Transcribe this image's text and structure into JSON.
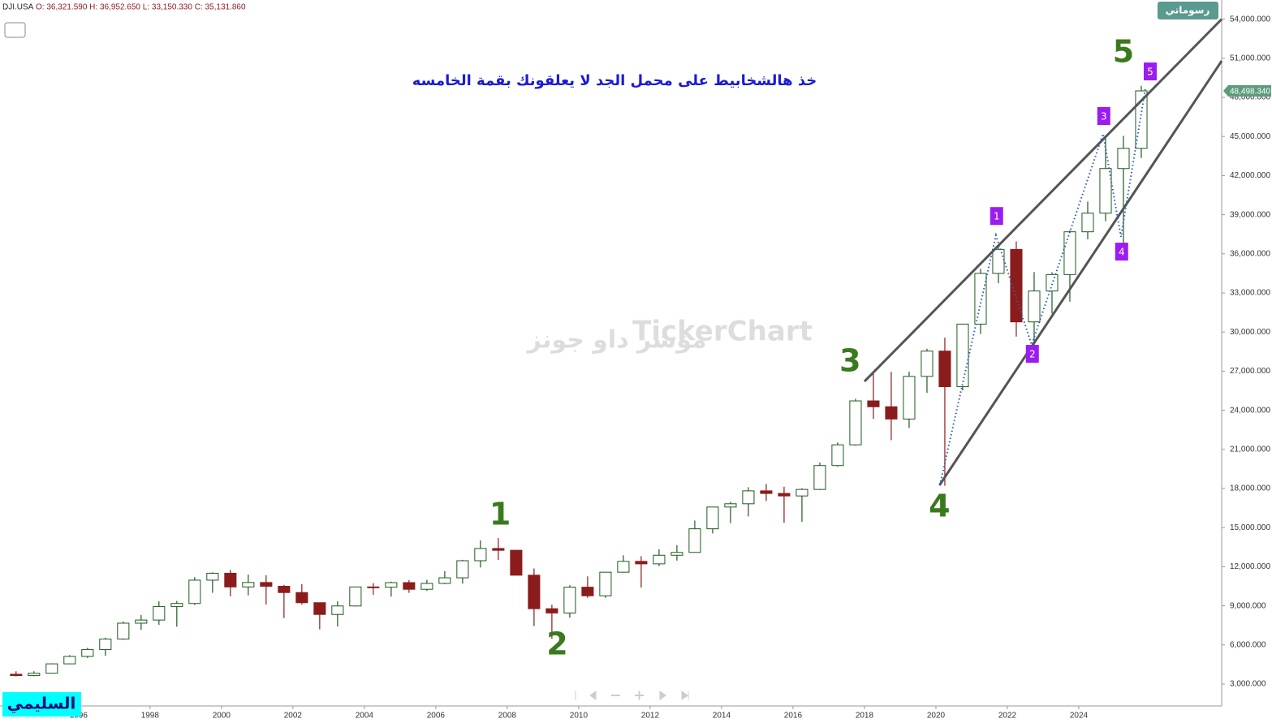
{
  "header": {
    "symbol": "DJI.USA",
    "ohlc": "O: 36,321.590 H: 36,952.650 L: 33,150.330 C: 35,131.860"
  },
  "button": "رسوماتي",
  "watermark": {
    "brand": "TickerChart",
    "name": "مؤشر داو جونز"
  },
  "signature": "السليمي",
  "chart_data": {
    "type": "candlestick",
    "title": "خذ هالشخابيط على محمل الجد لا يعلقونك بقمة الخامسه",
    "x": [
      1994.25,
      1994.75,
      1995.25,
      1995.75,
      1996.25,
      1996.75,
      1997.25,
      1997.75,
      1998.25,
      1998.75,
      1999.25,
      1999.75,
      2000.25,
      2000.75,
      2001.25,
      2001.75,
      2002.25,
      2002.75,
      2003.25,
      2003.75,
      2004.25,
      2004.75,
      2005.25,
      2005.75,
      2006.25,
      2006.75,
      2007.25,
      2007.75,
      2008.25,
      2008.75,
      2009.25,
      2009.75,
      2010.25,
      2010.75,
      2011.25,
      2011.75,
      2012.25,
      2012.75,
      2013.25,
      2013.75,
      2014.25,
      2014.75,
      2015.25,
      2015.75,
      2016.25,
      2016.75,
      2017.25,
      2017.75,
      2018.25,
      2018.75,
      2019.25,
      2019.75,
      2020.25,
      2020.75,
      2021.25,
      2021.75,
      2022.25,
      2022.75,
      2023.25,
      2023.75,
      2024.25,
      2024.75,
      2025.25,
      2025.75
    ],
    "open": [
      3750,
      3650,
      3830,
      4550,
      5120,
      5650,
      6450,
      7670,
      7910,
      8950,
      9180,
      10970,
      11500,
      10450,
      10790,
      10500,
      10020,
      9240,
      8340,
      8990,
      10450,
      10430,
      10780,
      10270,
      10720,
      11150,
      12460,
      13400,
      13260,
      11350,
      8780,
      8450,
      10430,
      9770,
      11580,
      12410,
      12220,
      12880,
      13100,
      14910,
      16580,
      16830,
      17820,
      17620,
      17430,
      17930,
      19760,
      21350,
      24720,
      24270,
      23330,
      26600,
      28540,
      25810,
      30610,
      34500,
      36340,
      30780,
      33150,
      34410,
      37690,
      39120,
      42540,
      44090
    ],
    "high": [
      3980,
      3980,
      4590,
      5220,
      5780,
      6560,
      7800,
      8300,
      9340,
      9380,
      11200,
      11570,
      11750,
      11400,
      11340,
      10610,
      10670,
      9250,
      9350,
      10460,
      10750,
      10860,
      10980,
      10990,
      11670,
      12530,
      14020,
      14200,
      13280,
      11870,
      9090,
      10580,
      11260,
      11590,
      12880,
      12810,
      13340,
      13660,
      15540,
      16590,
      16980,
      18100,
      18350,
      18140,
      18020,
      19990,
      21530,
      24880,
      26950,
      26950,
      26960,
      28720,
      29570,
      30640,
      34850,
      36570,
      36950,
      34600,
      34590,
      37800,
      40000,
      45070,
      45050,
      48890
    ],
    "low": [
      3590,
      3600,
      3830,
      4530,
      5000,
      5170,
      6390,
      7160,
      7540,
      7400,
      9060,
      10000,
      9730,
      9800,
      9100,
      8060,
      9100,
      7200,
      7420,
      8950,
      9850,
      9710,
      10000,
      10150,
      10660,
      10700,
      11940,
      12520,
      11630,
      7450,
      6470,
      8090,
      9610,
      9610,
      11560,
      10400,
      12040,
      12470,
      13100,
      14550,
      15340,
      15860,
      17040,
      15370,
      15450,
      17880,
      19680,
      21280,
      23340,
      21710,
      22640,
      25340,
      18210,
      25520,
      29850,
      33740,
      29650,
      28660,
      31430,
      32330,
      37120,
      38500,
      36610,
      43340
    ],
    "close": [
      3650,
      3830,
      4550,
      5120,
      5650,
      6450,
      7670,
      7910,
      8950,
      9180,
      10970,
      11500,
      10450,
      10790,
      10500,
      10020,
      9240,
      8340,
      8990,
      10450,
      10430,
      10780,
      10270,
      10720,
      11150,
      12460,
      13400,
      13260,
      11350,
      8780,
      8450,
      10430,
      9770,
      11580,
      12410,
      12220,
      12880,
      13100,
      14910,
      16580,
      16830,
      17820,
      17620,
      17430,
      17930,
      19760,
      21350,
      24720,
      24270,
      23330,
      26600,
      28540,
      25810,
      30610,
      34500,
      36340,
      30780,
      33150,
      34410,
      37690,
      39120,
      42540,
      44090,
      48498.34
    ],
    "up_color": "#1e5a1e",
    "down_color": "#8b1c1c",
    "last_price": {
      "value": 48498.34,
      "label": "48,498.340"
    },
    "last_price_color": "#5c9c7c",
    "xlim": [
      1993.8,
      2028.0
    ],
    "xticks": [
      1996,
      1998,
      2000,
      2002,
      2004,
      2006,
      2008,
      2010,
      2012,
      2014,
      2016,
      2018,
      2020,
      2022,
      2024
    ],
    "ylim": [
      1320,
      55470
    ],
    "yticks": [
      {
        "value": 3000,
        "label": "3,000.000"
      },
      {
        "value": 6000,
        "label": "6,000.000"
      },
      {
        "value": 9000,
        "label": "9,000.000"
      },
      {
        "value": 12000,
        "label": "12,000.000"
      },
      {
        "value": 15000,
        "label": "15,000.000"
      },
      {
        "value": 18000,
        "label": "18,000.000"
      },
      {
        "value": 21000,
        "label": "21,000.000"
      },
      {
        "value": 24000,
        "label": "24,000.000"
      },
      {
        "value": 27000,
        "label": "27,000.000"
      },
      {
        "value": 30000,
        "label": "30,000.000"
      },
      {
        "value": 33000,
        "label": "33,000.000"
      },
      {
        "value": 36000,
        "label": "36,000.000"
      },
      {
        "value": 39000,
        "label": "39,000.000"
      },
      {
        "value": 42000,
        "label": "42,000.000"
      },
      {
        "value": 45000,
        "label": "45,000.000"
      },
      {
        "value": 48000,
        "label": "48,000.000"
      },
      {
        "value": 51000,
        "label": "51,000.000"
      },
      {
        "value": 54000,
        "label": "54,000.000"
      }
    ],
    "wave_labels": [
      {
        "label": "1",
        "x": 2007.8,
        "y": 15880
      },
      {
        "label": "2",
        "x": 2009.4,
        "y": 5925
      },
      {
        "label": "3",
        "x": 2017.6,
        "y": 27650
      },
      {
        "label": "4",
        "x": 2020.1,
        "y": 16500
      },
      {
        "label": "5",
        "x": 2025.25,
        "y": 51360
      }
    ],
    "wave_label_color": "#3a7a1e",
    "sub_wave_labels": [
      {
        "label": "1",
        "x": 2021.7,
        "y": 38900
      },
      {
        "label": "2",
        "x": 2022.7,
        "y": 28330
      },
      {
        "label": "3",
        "x": 2024.7,
        "y": 46570
      },
      {
        "label": "4",
        "x": 2025.2,
        "y": 36170
      },
      {
        "label": "5",
        "x": 2026.0,
        "y": 49990
      }
    ],
    "sub_wave_color": "#9b1cf0",
    "trend_lines": [
      {
        "x": [
          2018.0,
          2028.0
        ],
        "y": [
          26215,
          54000
        ]
      },
      {
        "x": [
          2020.1,
          2028.0
        ],
        "y": [
          18250,
          50800
        ]
      }
    ],
    "wave_path": {
      "x": [
        2020.11,
        2021.68,
        2022.68,
        2024.68,
        2025.18,
        2025.86
      ],
      "y": [
        18250,
        37420,
        29020,
        45200,
        37300,
        48620
      ]
    }
  }
}
